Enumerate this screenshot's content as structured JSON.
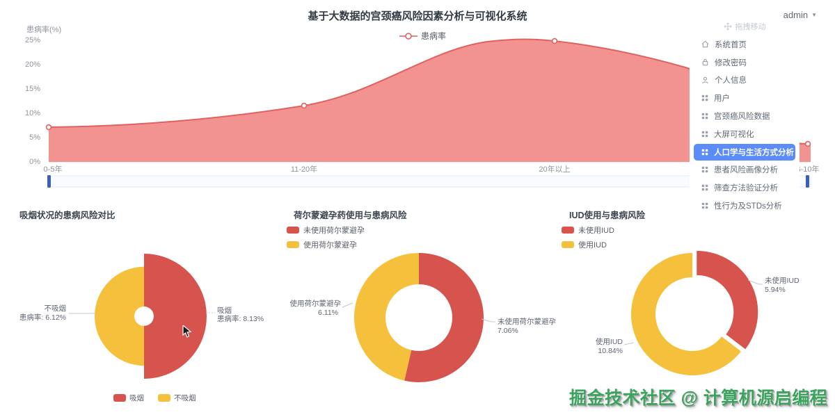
{
  "header": {
    "title": "基于大数据的宫颈癌风险因素分析与可视化系统",
    "user_menu": "admin"
  },
  "sidebar": {
    "drag_hint": "拖拽移动",
    "items": [
      {
        "label": "系统首页",
        "icon": "home",
        "active": false
      },
      {
        "label": "修改密码",
        "icon": "lock",
        "active": false
      },
      {
        "label": "个人信息",
        "icon": "user",
        "active": false
      },
      {
        "label": "用户",
        "icon": "grid",
        "active": false
      },
      {
        "label": "宫颈癌风险数据",
        "icon": "grid",
        "active": false
      },
      {
        "label": "大屏可视化",
        "icon": "grid",
        "active": false
      },
      {
        "label": "人口学与生活方式分析",
        "icon": "grid",
        "active": true
      },
      {
        "label": "患者风险画像分析",
        "icon": "grid",
        "active": false
      },
      {
        "label": "筛查方法验证分析",
        "icon": "grid",
        "active": false
      },
      {
        "label": "性行为及STDs分析",
        "icon": "grid",
        "active": false
      }
    ]
  },
  "chart_data": [
    {
      "type": "area",
      "title": "",
      "yaxis_name": "患病率(%)",
      "series": [
        {
          "name": "患病率",
          "values": [
            7.1,
            11.6,
            24.9,
            3.7
          ]
        }
      ],
      "categories": [
        "0-5年",
        "11-20年",
        "20年以上",
        "6-10年"
      ],
      "yticks": [
        "25%",
        "20%",
        "15%",
        "10%",
        "5%",
        "0%"
      ],
      "ylim": [
        0,
        25
      ],
      "grid": false,
      "legend_position": "top-center",
      "has_datazoom_slider": true
    },
    {
      "type": "pie",
      "subtype": "half-rose",
      "title": "吸烟状况的患病风险对比",
      "slices": [
        {
          "name": "吸烟",
          "value": 8.13,
          "color": "#d7534e",
          "label": [
            "吸烟",
            "患病率: 8.13%"
          ]
        },
        {
          "name": "不吸烟",
          "value": 6.12,
          "color": "#f5c13d",
          "label": [
            "不吸烟",
            "患病率: 6.12%"
          ]
        }
      ],
      "legend_position": "bottom"
    },
    {
      "type": "pie",
      "subtype": "donut",
      "title": "荷尔蒙避孕药使用与患病风险",
      "slices": [
        {
          "name": "未使用荷尔蒙避孕",
          "value": 7.06,
          "color": "#d7534e",
          "label": [
            "未使用荷尔蒙避孕",
            "7.06%"
          ]
        },
        {
          "name": "使用荷尔蒙避孕",
          "value": 6.11,
          "color": "#f5c13d",
          "label": [
            "使用荷尔蒙避孕",
            "6.11%"
          ]
        }
      ],
      "legend_position": "top-left"
    },
    {
      "type": "pie",
      "subtype": "donut-exploded",
      "title": "IUD使用与患病风险",
      "exploded_slice": "未使用IUD",
      "slices": [
        {
          "name": "未使用IUD",
          "value": 5.94,
          "color": "#d7534e",
          "label": [
            "未使用IUD",
            "5.94%"
          ]
        },
        {
          "name": "使用IUD",
          "value": 10.84,
          "color": "#f5c13d",
          "label": [
            "使用IUD",
            "10.84%"
          ]
        }
      ],
      "legend_position": "top-left"
    }
  ],
  "watermark": "掘金技术社区 @ 计算机源启编程",
  "colors": {
    "red": "#d7534e",
    "yellow": "#f5c13d",
    "area_fill": "#f29391",
    "area_line": "#e0615d",
    "active_blue": "#5b8cf8",
    "datazoom_handle": "#3a5fc0",
    "watermark_green": "#3ba35e"
  }
}
